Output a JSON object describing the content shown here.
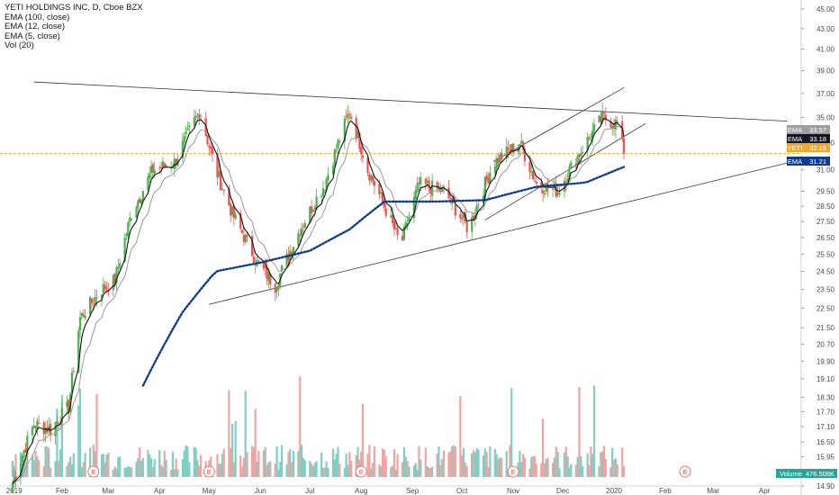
{
  "legend": {
    "symbol": "YETI HOLDINGS INC, D, Cboe BZX",
    "ema100": "EMA (100, close)",
    "ema12": "EMA (12, close)",
    "ema5": "EMA (5, close)",
    "vol": "Vol (20)"
  },
  "colors": {
    "up": "#4caf50",
    "down": "#ef5350",
    "vol_up": "#7fcfc4",
    "vol_down": "#f4a3a3",
    "ema100": "#0d3a8a",
    "ema12": "#111111",
    "ema5": "#9a9a9a",
    "price_line": "#f5a623",
    "trend_line": "#333333",
    "volume_tag": "#26a69a",
    "earnings": "#ef5350"
  },
  "chart_data": {
    "type": "candlestick",
    "x_labels": [
      "2019",
      "Feb",
      "Mar",
      "Apr",
      "May",
      "Jun",
      "Jul",
      "Aug",
      "Sep",
      "Oct",
      "Nov",
      "Dec",
      "2020",
      "Feb",
      "Mar",
      "Apr"
    ],
    "y_ticks": [
      "45.00",
      "43.00",
      "41.00",
      "39.00",
      "37.00",
      "35.00",
      "33.00",
      "31.00",
      "29.50",
      "28.50",
      "27.50",
      "26.50",
      "25.50",
      "24.50",
      "23.50",
      "22.50",
      "21.50",
      "20.70",
      "19.90",
      "19.10",
      "18.30",
      "17.70",
      "17.10",
      "16.50",
      "15.95",
      "15.40",
      "14.90"
    ],
    "y_scale": "log",
    "y_range": [
      14.9,
      45.0
    ],
    "series": [
      {
        "name": "YETI",
        "role": "price",
        "points": [
          [
            "2019-01-02",
            15.0
          ],
          [
            "2019-01-15",
            17.2
          ],
          [
            "2019-01-25",
            17.0
          ],
          [
            "2019-02-05",
            17.9
          ],
          [
            "2019-02-12",
            22.0
          ],
          [
            "2019-02-25",
            23.5
          ],
          [
            "2019-03-05",
            24.0
          ],
          [
            "2019-03-15",
            28.0
          ],
          [
            "2019-03-28",
            31.0
          ],
          [
            "2019-04-10",
            31.5
          ],
          [
            "2019-04-25",
            35.5
          ],
          [
            "2019-05-05",
            31.0
          ],
          [
            "2019-05-15",
            28.0
          ],
          [
            "2019-05-30",
            25.0
          ],
          [
            "2019-06-10",
            23.7
          ],
          [
            "2019-06-25",
            27.0
          ],
          [
            "2019-07-10",
            30.0
          ],
          [
            "2019-07-25",
            35.5
          ],
          [
            "2019-08-05",
            31.0
          ],
          [
            "2019-08-15",
            28.5
          ],
          [
            "2019-08-25",
            26.0
          ],
          [
            "2019-09-05",
            30.0
          ],
          [
            "2019-09-20",
            29.5
          ],
          [
            "2019-10-05",
            27.0
          ],
          [
            "2019-10-20",
            31.5
          ],
          [
            "2019-11-05",
            33.0
          ],
          [
            "2019-11-15",
            30.0
          ],
          [
            "2019-11-28",
            29.5
          ],
          [
            "2019-12-10",
            32.0
          ],
          [
            "2019-12-25",
            35.0
          ],
          [
            "2020-01-03",
            34.5
          ],
          [
            "2020-01-07",
            32.19
          ]
        ]
      },
      {
        "name": "EMA 100",
        "role": "ema100",
        "points": [
          [
            "2019-03-22",
            18.8
          ],
          [
            "2019-04-15",
            22.3
          ],
          [
            "2019-05-05",
            24.5
          ],
          [
            "2019-06-01",
            25.0
          ],
          [
            "2019-07-01",
            25.7
          ],
          [
            "2019-07-25",
            27.0
          ],
          [
            "2019-08-15",
            28.8
          ],
          [
            "2019-09-15",
            28.8
          ],
          [
            "2019-10-15",
            28.9
          ],
          [
            "2019-11-15",
            29.8
          ],
          [
            "2019-12-15",
            30.1
          ],
          [
            "2020-01-07",
            31.21
          ]
        ]
      },
      {
        "name": "EMA 12",
        "role": "ema12",
        "last": 33.18
      },
      {
        "name": "EMA 5",
        "role": "ema5",
        "last": 33.57
      }
    ],
    "trend_lines": [
      {
        "from": [
          "2019-01-15",
          38.0
        ],
        "to": [
          "2020-04-15",
          34.7
        ]
      },
      {
        "from": [
          "2019-05-01",
          22.7
        ],
        "to": [
          "2020-04-15",
          31.5
        ]
      },
      {
        "from": [
          "2019-10-15",
          27.6
        ],
        "to": [
          "2020-01-20",
          34.5
        ]
      },
      {
        "from": [
          "2019-10-20",
          31.6
        ],
        "to": [
          "2020-01-07",
          37.5
        ]
      }
    ],
    "price_tags": [
      {
        "label": "EMA",
        "value": "33.57",
        "bg": "#9e9e9e"
      },
      {
        "label": "EMA",
        "value": "33.18",
        "bg": "#131722"
      },
      {
        "label": "YETI",
        "value": "32.19",
        "bg": "#f5a623"
      },
      {
        "label": "EMA",
        "value": "31.21",
        "bg": "#0d3a8a"
      }
    ],
    "volume": {
      "label": "Volume",
      "value": "476.508K"
    },
    "earnings_markers": [
      "E",
      "E",
      "E",
      "E",
      "E"
    ]
  }
}
